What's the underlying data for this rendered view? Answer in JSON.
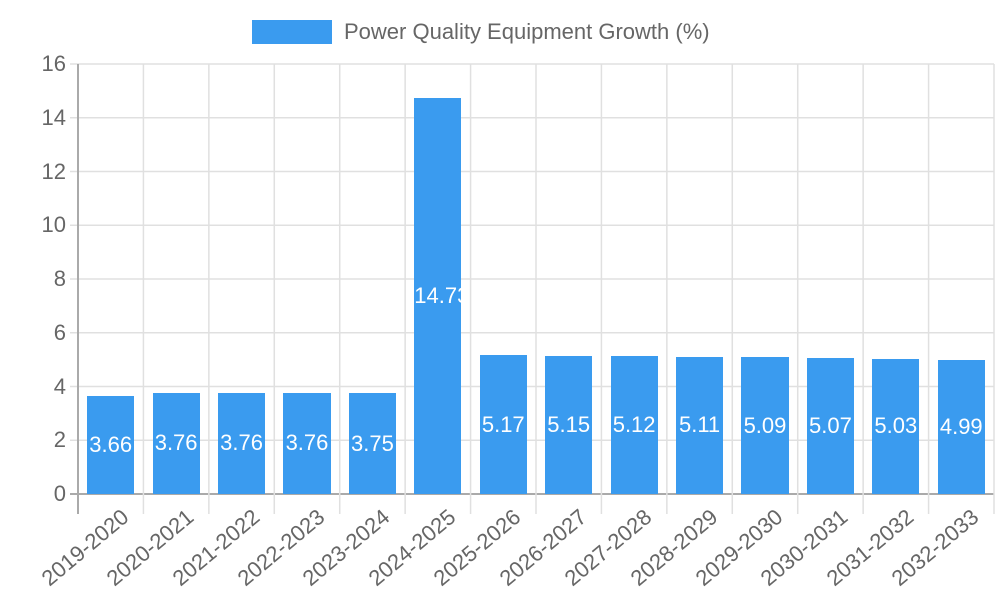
{
  "legend": {
    "label": "Power Quality Equipment Growth (%)",
    "color": "#3a9bef"
  },
  "chart_data": {
    "type": "bar",
    "title": "",
    "xlabel": "",
    "ylabel": "",
    "ylim": [
      0,
      16
    ],
    "yticks": [
      0,
      2,
      4,
      6,
      8,
      10,
      12,
      14,
      16
    ],
    "grid": true,
    "legend_position": "top",
    "categories": [
      "2019-2020",
      "2020-2021",
      "2021-2022",
      "2022-2023",
      "2023-2024",
      "2024-2025",
      "2025-2026",
      "2026-2027",
      "2027-2028",
      "2028-2029",
      "2029-2030",
      "2030-2031",
      "2031-2032",
      "2032-2033"
    ],
    "series": [
      {
        "name": "Power Quality Equipment Growth (%)",
        "color": "#3a9bef",
        "values": [
          3.66,
          3.76,
          3.76,
          3.76,
          3.75,
          14.73,
          5.17,
          5.15,
          5.12,
          5.11,
          5.09,
          5.07,
          5.03,
          4.99
        ]
      }
    ]
  }
}
